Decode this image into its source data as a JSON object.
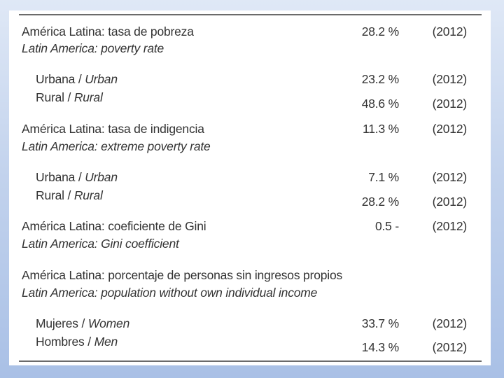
{
  "rows": [
    {
      "es": "América Latina: tasa de pobreza",
      "en": "Latin America: poverty rate",
      "value": "28.2 %",
      "year": "(2012)",
      "sub": [
        {
          "es": "Urbana / ",
          "en": "Urban",
          "value": "23.2 %",
          "year": "(2012)"
        },
        {
          "es": "Rural / ",
          "en": "Rural",
          "value": "48.6 %",
          "year": "(2012)"
        }
      ]
    },
    {
      "es": "América Latina: tasa de indigencia",
      "en": "Latin America: extreme poverty rate",
      "value": "11.3 %",
      "year": "(2012)",
      "sub": [
        {
          "es": "Urbana / ",
          "en": "Urban",
          "value": "7.1 %",
          "year": "(2012)"
        },
        {
          "es": "Rural / ",
          "en": "Rural",
          "value": "28.2 %",
          "year": "(2012)"
        }
      ]
    },
    {
      "es": "América Latina: coeficiente de Gini",
      "en": "Latin America: Gini coefficient",
      "value": "0.5 -",
      "year": "(2012)"
    },
    {
      "es": "América Latina: porcentaje de personas sin ingresos propios",
      "en": "Latin America: population without own individual income",
      "sub": [
        {
          "es": "Mujeres / ",
          "en": "Women",
          "value": "33.7 %",
          "year": "(2012)"
        },
        {
          "es": "Hombres / ",
          "en": "Men",
          "value": "14.3 %",
          "year": "(2012)"
        }
      ]
    }
  ]
}
